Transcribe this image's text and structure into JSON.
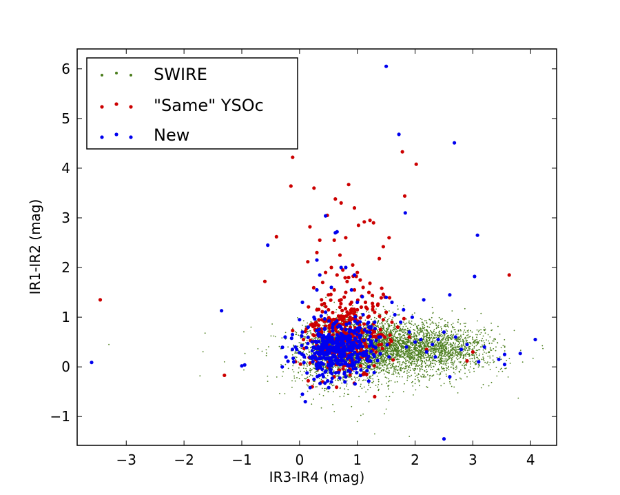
{
  "chart_data": {
    "type": "scatter",
    "title": "",
    "xlabel": "IR3-IR4 (mag)",
    "ylabel": "IR1-IR2 (mag)",
    "xlim": [
      -3.85,
      4.45
    ],
    "ylim": [
      -1.58,
      6.4
    ],
    "xticks": [
      -3,
      -2,
      -1,
      0,
      1,
      2,
      3,
      4
    ],
    "yticks": [
      -1,
      0,
      1,
      2,
      3,
      4,
      5,
      6
    ],
    "grid": false,
    "legend_position": "top-left",
    "series": [
      {
        "name": "SWIRE",
        "color": "#4a7d1c",
        "marker_size": 0.9,
        "points": [
          [
            -3.3,
            0.45
          ],
          [
            -1.3,
            0.1
          ],
          [
            0.2,
            0.9
          ],
          [
            0.4,
            1.1
          ],
          [
            0.6,
            1.3
          ],
          [
            0.8,
            1.2
          ],
          [
            1.0,
            1.3
          ],
          [
            1.2,
            1.1
          ],
          [
            1.4,
            1.0
          ],
          [
            1.6,
            0.95
          ],
          [
            1.8,
            0.9
          ],
          [
            2.0,
            0.85
          ],
          [
            2.2,
            0.75
          ],
          [
            2.5,
            0.7
          ],
          [
            2.8,
            0.6
          ],
          [
            3.0,
            0.55
          ],
          [
            3.2,
            0.45
          ],
          [
            3.4,
            0.4
          ],
          [
            2.9,
            -0.2
          ],
          [
            2.6,
            -0.3
          ],
          [
            2.2,
            -0.4
          ],
          [
            1.8,
            -0.5
          ],
          [
            1.5,
            -0.6
          ],
          [
            1.2,
            -0.7
          ],
          [
            1.5,
            -0.85
          ],
          [
            1.3,
            -1.35
          ],
          [
            1.9,
            -1.4
          ],
          [
            1.1,
            -0.95
          ],
          [
            0.9,
            -0.8
          ],
          [
            0.7,
            -0.6
          ],
          [
            0.5,
            -0.5
          ],
          [
            0.3,
            -0.4
          ],
          [
            -0.1,
            -0.1
          ],
          [
            -0.3,
            0.0
          ],
          [
            -0.2,
            0.4
          ],
          [
            0.1,
            0.6
          ],
          [
            3.3,
            -0.05
          ],
          [
            2.0,
            -0.25
          ],
          [
            1.0,
            -1.1
          ],
          [
            0.6,
            -0.9
          ]
        ],
        "clusters": [
          {
            "cx": 0.55,
            "cy": 0.3,
            "sx": 0.3,
            "sy": 0.28,
            "n": 1100
          },
          {
            "cx": 1.15,
            "cy": 0.4,
            "sx": 0.35,
            "sy": 0.28,
            "n": 1600
          },
          {
            "cx": 1.9,
            "cy": 0.4,
            "sx": 0.5,
            "sy": 0.25,
            "n": 1500
          },
          {
            "cx": 2.6,
            "cy": 0.35,
            "sx": 0.45,
            "sy": 0.22,
            "n": 700
          },
          {
            "cx": 1.4,
            "cy": 0.2,
            "sx": 1.0,
            "sy": 0.4,
            "n": 500
          }
        ]
      },
      {
        "name": "\"Same\" YSOc",
        "color": "#cc0000",
        "marker_size": 2.6,
        "points": [
          [
            -3.45,
            1.35
          ],
          [
            -1.3,
            -0.17
          ],
          [
            -0.6,
            1.72
          ],
          [
            -0.4,
            2.62
          ],
          [
            -0.15,
            3.64
          ],
          [
            -0.12,
            4.22
          ],
          [
            0.25,
            3.6
          ],
          [
            0.18,
            2.82
          ],
          [
            0.3,
            2.3
          ],
          [
            0.35,
            2.55
          ],
          [
            0.48,
            3.05
          ],
          [
            0.62,
            3.38
          ],
          [
            0.72,
            3.3
          ],
          [
            0.85,
            3.67
          ],
          [
            0.95,
            3.2
          ],
          [
            1.02,
            2.85
          ],
          [
            0.92,
            2.05
          ],
          [
            1.12,
            2.92
          ],
          [
            1.22,
            2.95
          ],
          [
            1.28,
            2.9
          ],
          [
            1.45,
            2.42
          ],
          [
            1.38,
            2.18
          ],
          [
            1.55,
            2.6
          ],
          [
            1.78,
            4.33
          ],
          [
            1.82,
            3.44
          ],
          [
            2.02,
            4.08
          ],
          [
            3.63,
            1.85
          ],
          [
            1.3,
            -0.6
          ],
          [
            0.22,
            -0.4
          ],
          [
            0.15,
            -0.28
          ],
          [
            0.6,
            2.55
          ],
          [
            0.7,
            2.25
          ],
          [
            0.8,
            2.6
          ],
          [
            0.55,
            2.0
          ],
          [
            0.45,
            1.9
          ],
          [
            0.4,
            1.7
          ],
          [
            0.65,
            1.85
          ],
          [
            0.75,
            1.95
          ],
          [
            0.85,
            1.8
          ],
          [
            1.0,
            1.9
          ],
          [
            1.05,
            1.75
          ],
          [
            1.1,
            1.6
          ],
          [
            0.95,
            1.55
          ],
          [
            0.8,
            1.5
          ],
          [
            0.6,
            1.55
          ],
          [
            0.5,
            1.45
          ],
          [
            0.38,
            1.35
          ],
          [
            0.72,
            1.35
          ],
          [
            0.9,
            1.3
          ],
          [
            1.2,
            1.5
          ],
          [
            0.3,
            1.15
          ],
          [
            0.5,
            1.15
          ],
          [
            0.7,
            1.2
          ],
          [
            1.0,
            1.15
          ],
          [
            1.15,
            1.2
          ],
          [
            1.3,
            1.1
          ],
          [
            1.45,
            0.95
          ],
          [
            1.5,
            1.1
          ],
          [
            1.6,
            0.9
          ],
          [
            1.7,
            0.8
          ],
          [
            1.9,
            0.6
          ],
          [
            2.2,
            0.35
          ],
          [
            2.9,
            0.12
          ],
          [
            3.0,
            0.3
          ],
          [
            0.6,
            -0.2
          ],
          [
            0.4,
            -0.3
          ],
          [
            1.1,
            -0.15
          ]
        ],
        "clusters": [
          {
            "cx": 0.75,
            "cy": 0.55,
            "sx": 0.32,
            "sy": 0.35,
            "n": 260
          },
          {
            "cx": 0.85,
            "cy": 1.0,
            "sx": 0.3,
            "sy": 0.35,
            "n": 90
          }
        ]
      },
      {
        "name": "New",
        "color": "#0000ee",
        "marker_size": 2.6,
        "points": [
          [
            -3.6,
            0.09
          ],
          [
            -1.35,
            1.13
          ],
          [
            -1.0,
            0.02
          ],
          [
            -0.95,
            0.04
          ],
          [
            -0.55,
            2.45
          ],
          [
            1.5,
            6.05
          ],
          [
            1.72,
            4.68
          ],
          [
            2.68,
            4.51
          ],
          [
            1.83,
            3.1
          ],
          [
            0.45,
            3.04
          ],
          [
            0.62,
            2.7
          ],
          [
            0.65,
            2.72
          ],
          [
            0.3,
            2.15
          ],
          [
            3.08,
            2.65
          ],
          [
            3.03,
            1.82
          ],
          [
            0.35,
            1.85
          ],
          [
            0.3,
            1.55
          ],
          [
            0.05,
            1.3
          ],
          [
            0.0,
            0.95
          ],
          [
            -0.25,
            0.6
          ],
          [
            -0.05,
            0.35
          ],
          [
            0.1,
            -0.7
          ],
          [
            0.05,
            -0.55
          ],
          [
            0.25,
            -0.25
          ],
          [
            2.5,
            -1.45
          ],
          [
            4.08,
            0.55
          ],
          [
            3.82,
            0.27
          ],
          [
            3.55,
            0.25
          ],
          [
            3.45,
            0.15
          ],
          [
            3.1,
            0.1
          ],
          [
            2.8,
            0.35
          ],
          [
            2.9,
            0.45
          ],
          [
            2.7,
            0.6
          ],
          [
            2.5,
            0.7
          ],
          [
            2.4,
            0.55
          ],
          [
            2.3,
            0.45
          ],
          [
            2.2,
            0.3
          ],
          [
            2.1,
            0.55
          ],
          [
            2.0,
            0.5
          ],
          [
            1.9,
            0.7
          ],
          [
            1.95,
            1.0
          ],
          [
            2.15,
            1.35
          ],
          [
            1.8,
            1.15
          ],
          [
            1.6,
            1.3
          ],
          [
            1.5,
            1.4
          ],
          [
            1.65,
            1.05
          ],
          [
            1.75,
            0.9
          ],
          [
            1.85,
            0.4
          ],
          [
            1.55,
            0.2
          ],
          [
            1.4,
            0.6
          ],
          [
            1.3,
            0.9
          ],
          [
            1.2,
            0.8
          ],
          [
            1.1,
            1.05
          ],
          [
            1.0,
            1.3
          ],
          [
            0.9,
            1.55
          ],
          [
            0.95,
            1.85
          ],
          [
            0.8,
            2.0
          ],
          [
            0.72,
            2.0
          ],
          [
            0.55,
            1.6
          ],
          [
            0.45,
            1.1
          ],
          [
            0.25,
            1.0
          ],
          [
            0.15,
            0.8
          ],
          [
            0.05,
            0.7
          ],
          [
            -0.1,
            0.1
          ],
          [
            -0.3,
            0.0
          ],
          [
            0.55,
            -0.3
          ],
          [
            0.8,
            -0.2
          ],
          [
            1.2,
            0.0
          ],
          [
            2.6,
            1.45
          ],
          [
            3.2,
            0.4
          ],
          [
            2.35,
            0.2
          ],
          [
            2.6,
            -0.2
          ],
          [
            3.55,
            0.05
          ]
        ],
        "clusters": [
          {
            "cx": 0.55,
            "cy": 0.3,
            "sx": 0.28,
            "sy": 0.26,
            "n": 300
          },
          {
            "cx": 0.9,
            "cy": 0.45,
            "sx": 0.25,
            "sy": 0.25,
            "n": 120
          }
        ]
      }
    ]
  }
}
